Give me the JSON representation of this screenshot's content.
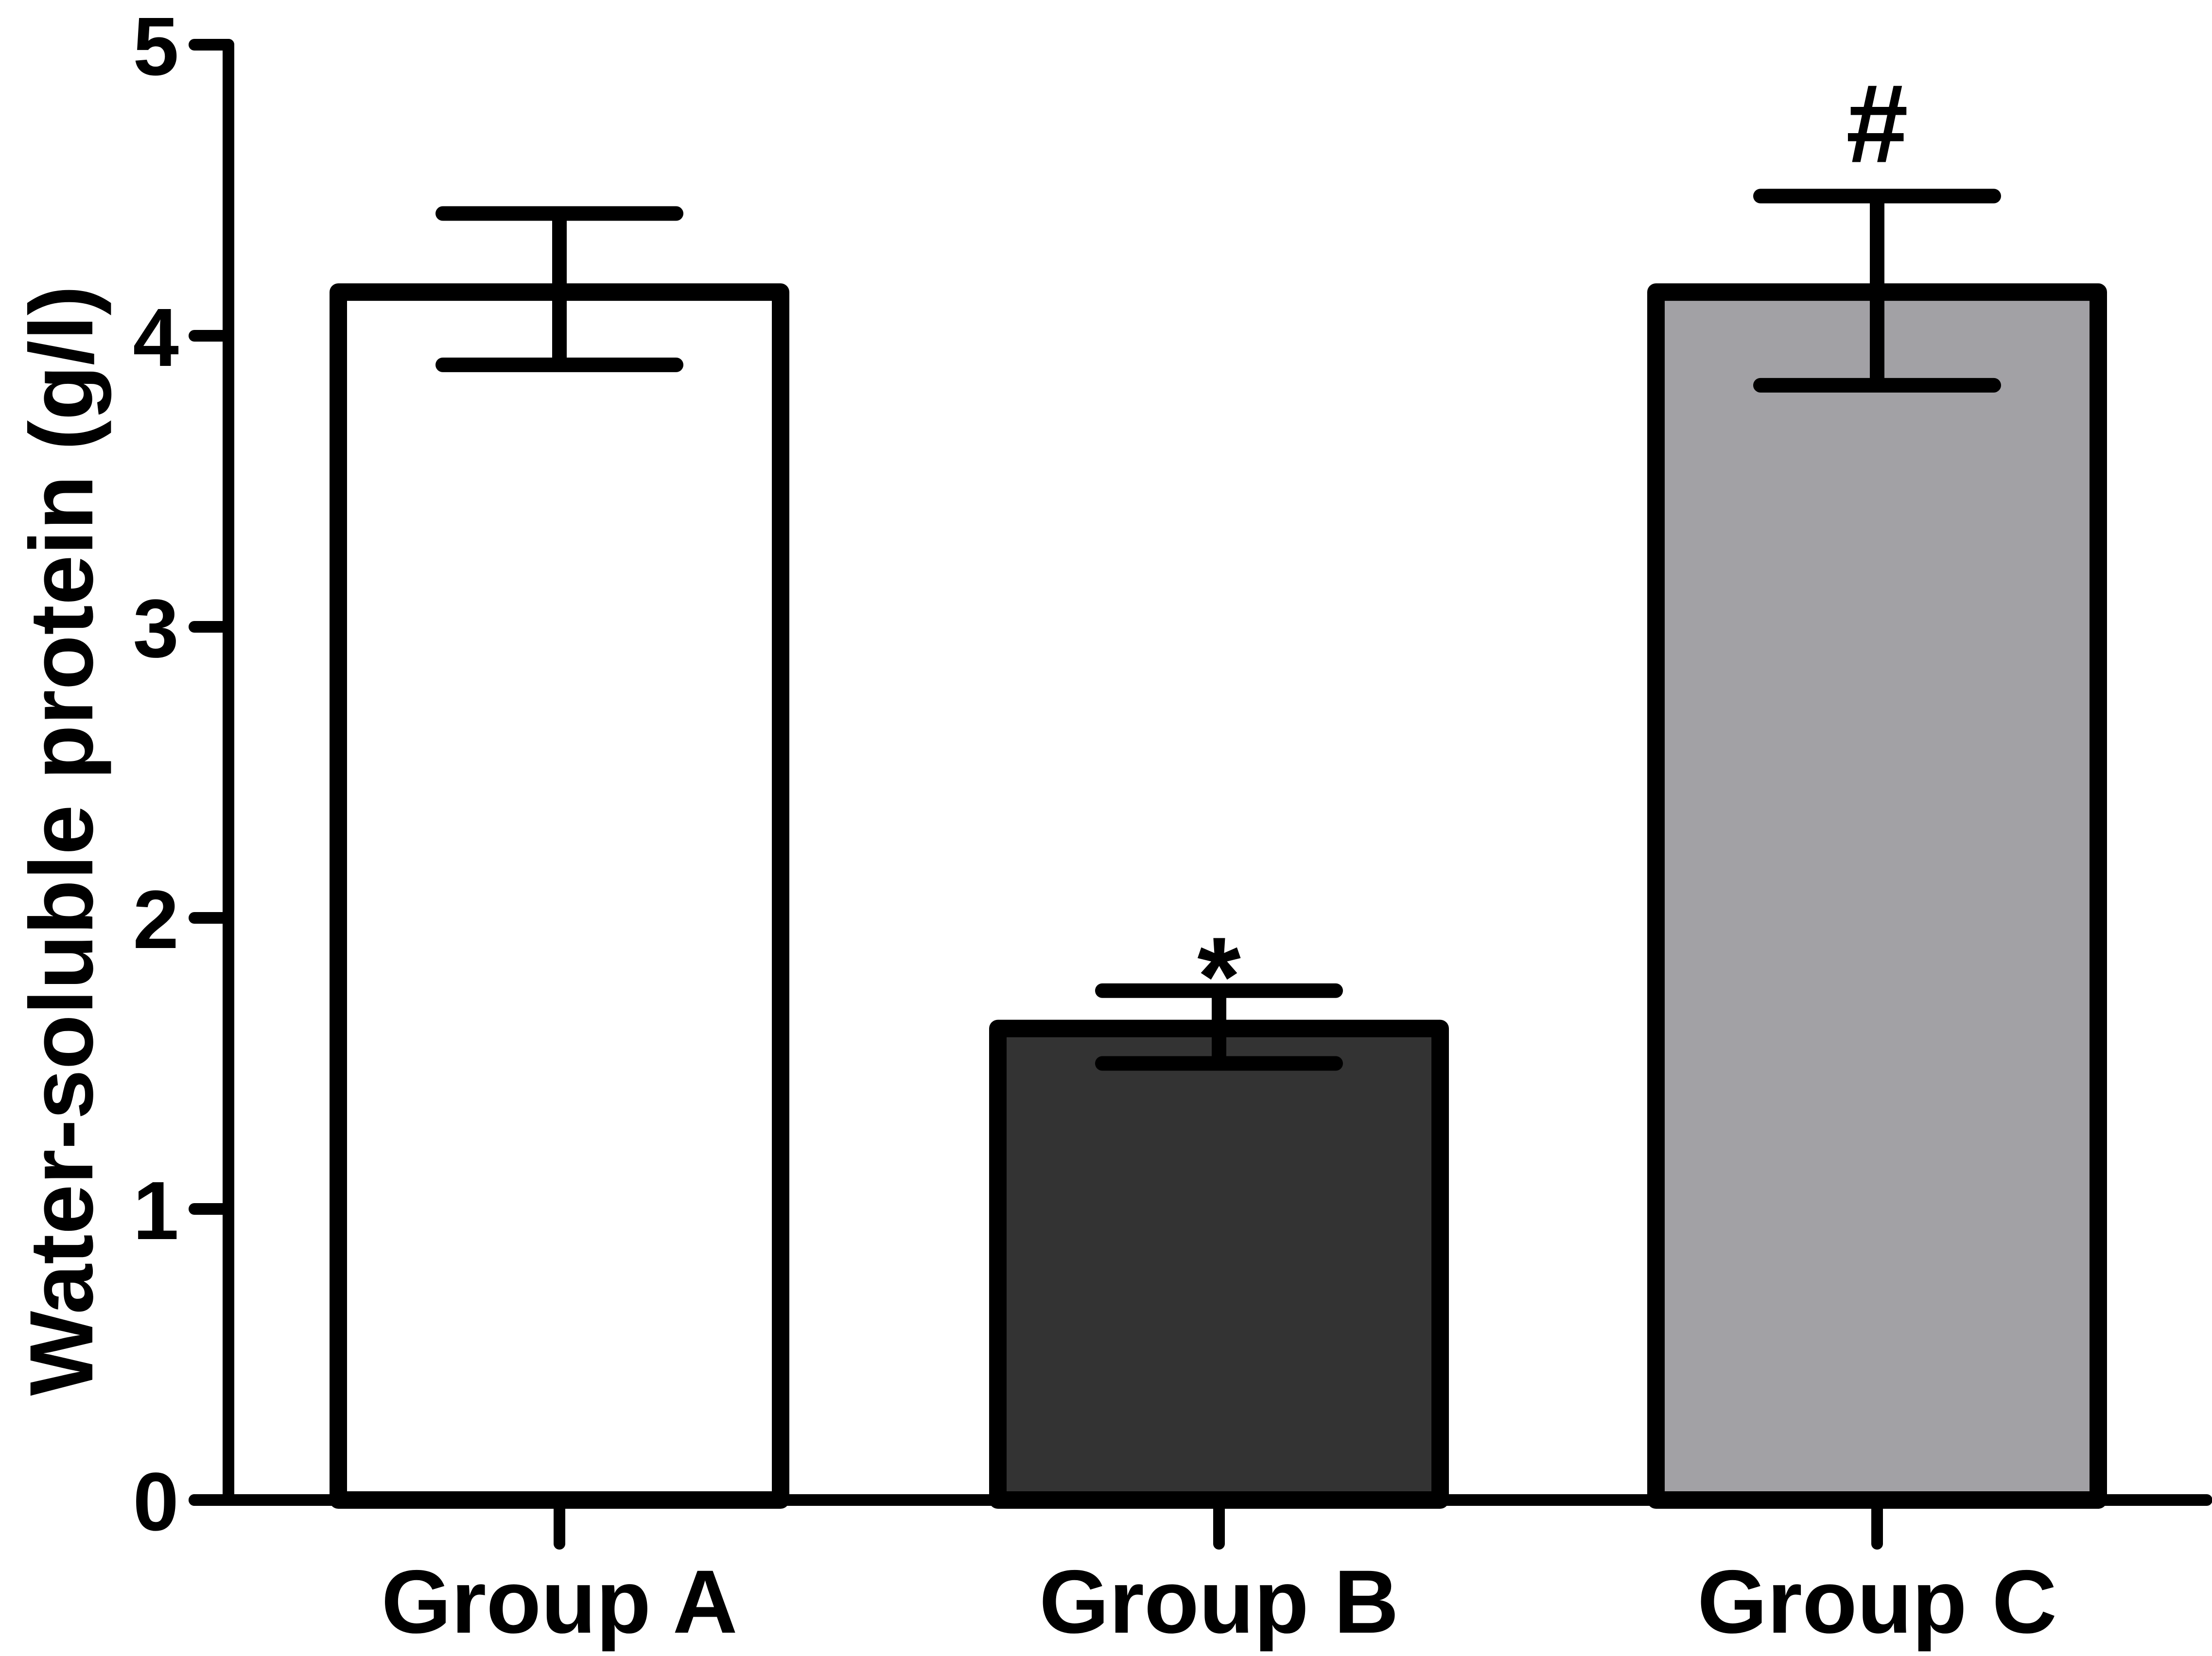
{
  "chart_data": {
    "type": "bar",
    "title": "",
    "xlabel": "",
    "ylabel": "Water-soluble protein (g/l)",
    "categories": [
      "Group A",
      "Group B",
      "Group C"
    ],
    "values": [
      4.15,
      1.62,
      4.15
    ],
    "error_upper": [
      4.42,
      1.75,
      4.48
    ],
    "error_lower": [
      3.9,
      1.5,
      3.83
    ],
    "annotations": [
      "",
      "*",
      "#"
    ],
    "bar_colors": [
      "#ffffff",
      "#333333",
      "#a2a1a5"
    ],
    "ylim": [
      0,
      5
    ],
    "yticks": [
      0,
      1,
      2,
      3,
      4,
      5
    ],
    "grid": false,
    "legend": "none"
  }
}
